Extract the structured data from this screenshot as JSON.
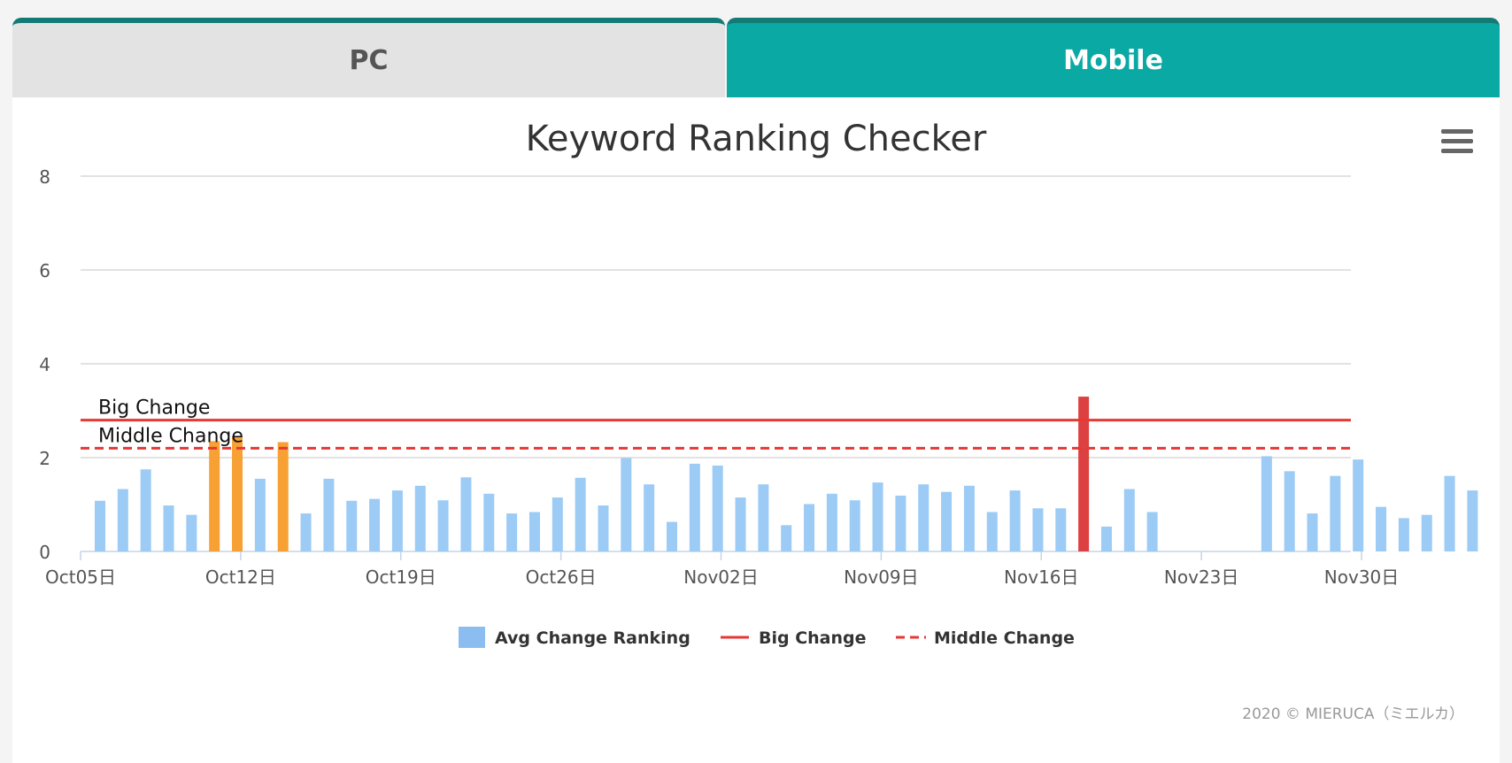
{
  "tabs": [
    {
      "label": "PC",
      "active": false
    },
    {
      "label": "Mobile",
      "active": true
    }
  ],
  "colors": {
    "tab_active": "#0aa9a4",
    "tab_inactive": "#e3e3e3",
    "bar_normal": "#9ccbf5",
    "bar_middle": "#f7a033",
    "bar_big": "#dd4040",
    "big_line": "#e53935",
    "middle_line": "#e53935",
    "grid": "#d8d8d8"
  },
  "menu_icon": "hamburger-menu-icon",
  "chart_data": {
    "type": "bar",
    "title": "Keyword Ranking Checker",
    "xlabel": "",
    "ylabel": "",
    "ylim": [
      0,
      8
    ],
    "yticks": [
      0,
      2,
      4,
      6,
      8
    ],
    "grid": true,
    "legend_position": "bottom-center",
    "xticks": [
      "Oct05日",
      "Oct12日",
      "Oct19日",
      "Oct26日",
      "Nov02日",
      "Nov09日",
      "Nov16日",
      "Nov23日",
      "Nov30日"
    ],
    "dates": [
      "Oct05",
      "Oct06",
      "Oct07",
      "Oct08",
      "Oct09",
      "Oct10",
      "Oct11",
      "Oct12",
      "Oct13",
      "Oct14",
      "Oct15",
      "Oct16",
      "Oct17",
      "Oct18",
      "Oct19",
      "Oct20",
      "Oct21",
      "Oct22",
      "Oct23",
      "Oct24",
      "Oct25",
      "Oct26",
      "Oct27",
      "Oct28",
      "Oct29",
      "Oct30",
      "Oct31",
      "Nov01",
      "Nov02",
      "Nov03",
      "Nov04",
      "Nov05",
      "Nov06",
      "Nov07",
      "Nov08",
      "Nov09",
      "Nov10",
      "Nov11",
      "Nov12",
      "Nov13",
      "Nov14",
      "Nov15",
      "Nov16",
      "Nov17",
      "Nov18",
      "Nov19",
      "Nov20",
      "Nov21",
      "Nov22",
      "Nov23",
      "Nov24",
      "Nov25",
      "Nov26",
      "Nov27",
      "Nov28",
      "Nov29",
      "Nov30",
      "Dec01",
      "Dec02",
      "Dec03",
      "Dec04"
    ],
    "series": [
      {
        "name": "Avg Change Ranking",
        "values": [
          1.08,
          1.33,
          1.75,
          0.98,
          0.78,
          2.35,
          2.45,
          1.55,
          2.33,
          0.81,
          1.55,
          1.08,
          1.12,
          1.3,
          1.4,
          1.09,
          1.58,
          1.23,
          0.81,
          0.84,
          1.15,
          1.57,
          0.98,
          1.99,
          1.43,
          0.63,
          1.87,
          1.83,
          1.15,
          1.43,
          0.56,
          1.01,
          1.23,
          1.09,
          1.47,
          1.19,
          1.43,
          1.27,
          1.4,
          0.84,
          1.3,
          0.92,
          0.92,
          3.3,
          0.53,
          1.33,
          0.84,
          null,
          null,
          null,
          null,
          2.03,
          1.71,
          0.81,
          1.61,
          1.96,
          0.95,
          0.71,
          0.78,
          1.61,
          1.3
        ]
      },
      {
        "name": "Big Change",
        "value": 2.8
      },
      {
        "name": "Middle Change",
        "value": 2.2
      }
    ],
    "annotations": [
      "Big Change",
      "Middle Change"
    ],
    "credit": "2020 © MIERUCA（ミエルカ）"
  }
}
